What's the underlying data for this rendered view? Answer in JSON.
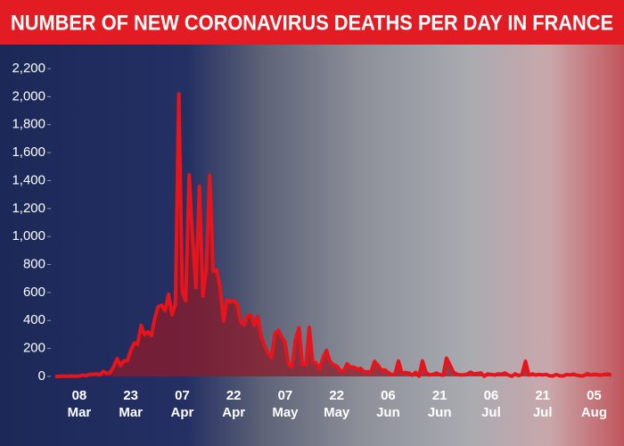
{
  "chart_data": {
    "type": "area",
    "title": "NUMBER OF NEW CORONAVIRUS DEATHS PER DAY IN FRANCE",
    "color": "#e8141c",
    "categories": [
      null,
      null,
      null,
      null,
      null,
      null,
      null,
      "08 Mar",
      null,
      null,
      null,
      null,
      null,
      null,
      null,
      null,
      null,
      null,
      null,
      null,
      null,
      null,
      "23 Mar",
      null,
      null,
      null,
      null,
      null,
      null,
      null,
      null,
      null,
      null,
      null,
      null,
      null,
      null,
      "07 Apr",
      null,
      null,
      null,
      null,
      null,
      null,
      null,
      null,
      null,
      null,
      null,
      null,
      null,
      null,
      "22 Apr",
      null,
      null,
      null,
      null,
      null,
      null,
      null,
      null,
      null,
      null,
      null,
      null,
      null,
      null,
      "07 May",
      null,
      null,
      null,
      null,
      null,
      null,
      null,
      null,
      null,
      null,
      null,
      null,
      null,
      null,
      "22 May",
      null,
      null,
      null,
      null,
      null,
      null,
      null,
      null,
      null,
      null,
      null,
      null,
      null,
      null,
      "06 Jun",
      null,
      null,
      null,
      null,
      null,
      null,
      null,
      null,
      null,
      null,
      null,
      null,
      null,
      null,
      "21 Jun",
      null,
      null,
      null,
      null,
      null,
      null,
      null,
      null,
      null,
      null,
      null,
      null,
      null,
      null,
      "06 Jul",
      null,
      null,
      null,
      null,
      null,
      null,
      null,
      null,
      null,
      null,
      null,
      null,
      null,
      null,
      "21 Jul",
      null,
      null,
      null,
      null,
      null,
      null,
      null,
      null,
      null,
      null,
      null,
      null,
      null,
      null,
      "05 Aug",
      null,
      null,
      null,
      null,
      null
    ],
    "values": [
      0,
      0,
      1,
      1,
      2,
      3,
      2,
      3,
      10,
      5,
      15,
      15,
      18,
      12,
      36,
      21,
      27,
      69,
      128,
      78,
      112,
      112,
      186,
      240,
      231,
      365,
      299,
      319,
      292,
      418,
      499,
      509,
      471,
      588,
      441,
      518,
      2020,
      607,
      541,
      1441,
      987,
      635,
      1360,
      574,
      762,
      1438,
      753,
      761,
      642,
      395,
      547,
      531,
      544,
      516,
      389,
      369,
      437,
      437,
      367,
      427,
      289,
      218,
      166,
      135,
      306,
      330,
      278,
      243,
      80,
      70,
      263,
      348,
      85,
      83,
      351,
      104,
      96,
      54,
      131,
      186,
      110,
      83,
      74,
      43,
      35,
      90,
      65,
      66,
      52,
      57,
      31,
      34,
      31,
      107,
      81,
      44,
      46,
      29,
      13,
      18,
      110,
      23,
      28,
      24,
      9,
      29,
      2,
      111,
      28,
      11,
      14,
      24,
      13,
      9,
      130,
      81,
      31,
      15,
      11,
      11,
      16,
      30,
      18,
      21,
      25,
      1,
      18,
      14,
      10,
      17,
      15,
      25,
      10,
      1,
      18,
      6,
      14,
      108,
      10,
      17,
      10,
      14,
      11,
      14,
      5,
      3,
      14,
      4,
      3,
      14,
      11,
      16,
      8,
      4,
      5,
      20,
      10,
      15,
      12,
      9,
      14,
      18,
      8
    ],
    "ylim": [
      0,
      2200
    ],
    "yticks": [
      0,
      200,
      400,
      600,
      800,
      {
        "value": 1000,
        "label": "1,000"
      },
      {
        "value": 1200,
        "label": "1,200"
      },
      {
        "value": 1400,
        "label": "1,400"
      },
      {
        "value": 1600,
        "label": "1,600"
      },
      {
        "value": 1800,
        "label": "1,800"
      },
      {
        "value": 2000,
        "label": "2,000"
      },
      {
        "value": 2200,
        "label": "2,200"
      }
    ]
  }
}
